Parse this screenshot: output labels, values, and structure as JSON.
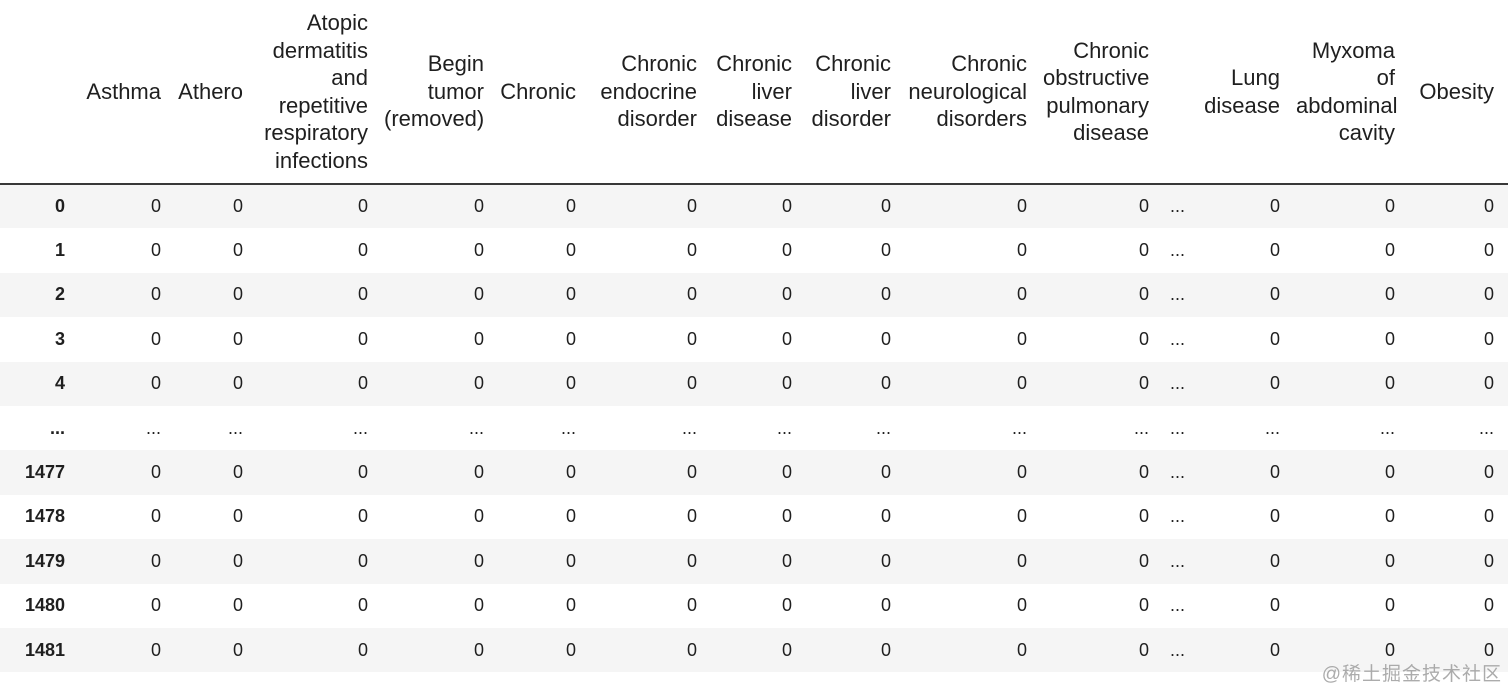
{
  "table": {
    "index_header": "",
    "columns": [
      "Asthma",
      "Athero",
      "Atopic\ndermatitis\nand\nrepetitive\nrespiratory\ninfections",
      "Begin\ntumor\n(removed)",
      "Chronic",
      "Chronic\nendocrine\ndisorder",
      "Chronic\nliver\ndisease",
      "Chronic\nliver\ndisorder",
      "Chronic\nneurological\ndisorders",
      "Chronic\nobstructive\npulmonary\ndisease",
      "",
      "Lung\ndisease",
      "Myxoma\nof\nabdominal\ncavity",
      "Obesity"
    ],
    "rows": [
      {
        "index": "0",
        "values": [
          "0",
          "0",
          "0",
          "0",
          "0",
          "0",
          "0",
          "0",
          "0",
          "0",
          "...",
          "0",
          "0",
          "0"
        ]
      },
      {
        "index": "1",
        "values": [
          "0",
          "0",
          "0",
          "0",
          "0",
          "0",
          "0",
          "0",
          "0",
          "0",
          "...",
          "0",
          "0",
          "0"
        ]
      },
      {
        "index": "2",
        "values": [
          "0",
          "0",
          "0",
          "0",
          "0",
          "0",
          "0",
          "0",
          "0",
          "0",
          "...",
          "0",
          "0",
          "0"
        ]
      },
      {
        "index": "3",
        "values": [
          "0",
          "0",
          "0",
          "0",
          "0",
          "0",
          "0",
          "0",
          "0",
          "0",
          "...",
          "0",
          "0",
          "0"
        ]
      },
      {
        "index": "4",
        "values": [
          "0",
          "0",
          "0",
          "0",
          "0",
          "0",
          "0",
          "0",
          "0",
          "0",
          "...",
          "0",
          "0",
          "0"
        ]
      },
      {
        "index": "...",
        "values": [
          "...",
          "...",
          "...",
          "...",
          "...",
          "...",
          "...",
          "...",
          "...",
          "...",
          "...",
          "...",
          "...",
          "..."
        ]
      },
      {
        "index": "1477",
        "values": [
          "0",
          "0",
          "0",
          "0",
          "0",
          "0",
          "0",
          "0",
          "0",
          "0",
          "...",
          "0",
          "0",
          "0"
        ]
      },
      {
        "index": "1478",
        "values": [
          "0",
          "0",
          "0",
          "0",
          "0",
          "0",
          "0",
          "0",
          "0",
          "0",
          "...",
          "0",
          "0",
          "0"
        ]
      },
      {
        "index": "1479",
        "values": [
          "0",
          "0",
          "0",
          "0",
          "0",
          "0",
          "0",
          "0",
          "0",
          "0",
          "...",
          "0",
          "0",
          "0"
        ]
      },
      {
        "index": "1480",
        "values": [
          "0",
          "0",
          "0",
          "0",
          "0",
          "0",
          "0",
          "0",
          "0",
          "0",
          "...",
          "0",
          "0",
          "0"
        ]
      },
      {
        "index": "1481",
        "values": [
          "0",
          "0",
          "0",
          "0",
          "0",
          "0",
          "0",
          "0",
          "0",
          "0",
          "...",
          "0",
          "0",
          "0"
        ]
      }
    ],
    "colors": {
      "stripe": "#f5f5f5",
      "header_border": "#383838",
      "text": "#1f1f1f",
      "watermark": "#9e9e9e"
    }
  },
  "watermark": {
    "text": "@稀土掘金技术社区"
  }
}
